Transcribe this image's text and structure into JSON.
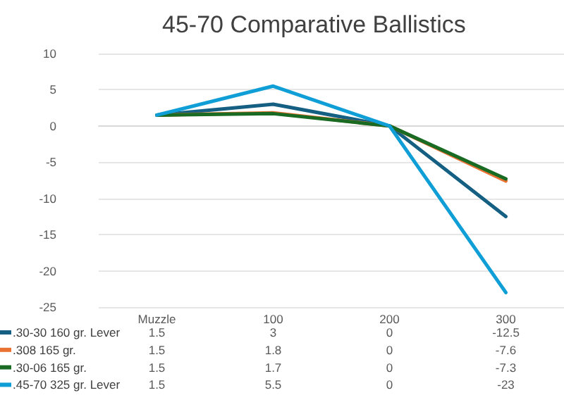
{
  "chart_data": {
    "type": "line",
    "title": "45-70 Comparative Ballistics",
    "categories": [
      "Muzzle",
      "100",
      "200",
      "300"
    ],
    "series": [
      {
        "name": ".30-30 160 gr. Lever",
        "color": "#156082",
        "values": [
          1.5,
          3,
          0,
          -12.5
        ]
      },
      {
        "name": ".308 165 gr.",
        "color": "#e97132",
        "values": [
          1.5,
          1.8,
          0,
          -7.6
        ]
      },
      {
        "name": ".30-06 165 gr.",
        "color": "#196b24",
        "values": [
          1.5,
          1.7,
          0,
          -7.3
        ]
      },
      {
        "name": ".45-70 325 gr. Lever",
        "color": "#0f9ed5",
        "values": [
          1.5,
          5.5,
          0,
          -23
        ]
      }
    ],
    "ylim": [
      -25,
      10
    ],
    "yticks": [
      -25,
      -20,
      -15,
      -10,
      -5,
      0,
      5,
      10
    ],
    "grid": "y",
    "legend": "bottom",
    "data_labels": true,
    "marker": "none",
    "line_style": "solid"
  }
}
